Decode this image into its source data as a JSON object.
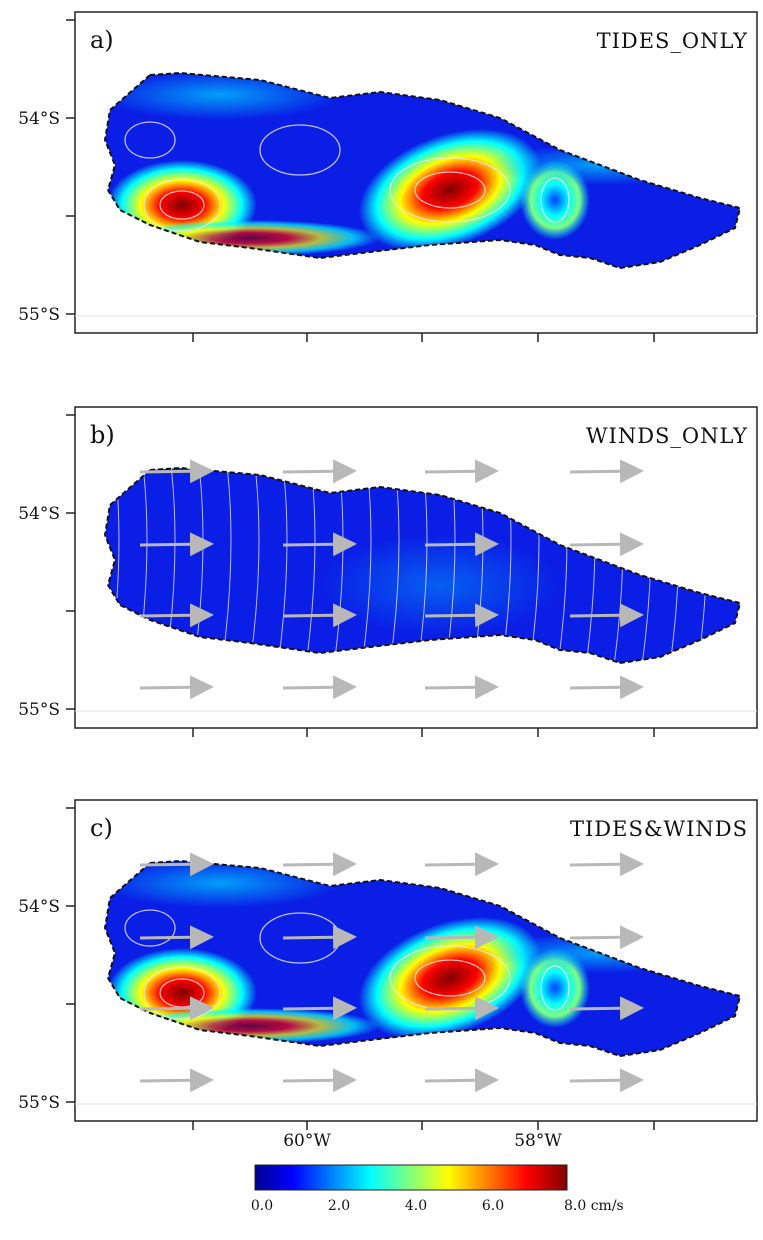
{
  "panels": [
    {
      "label": "a)",
      "title": "TIDES_ONLY",
      "y_tick_labels": [
        "54°S",
        "55°S"
      ]
    },
    {
      "label": "b)",
      "title": "WINDS_ONLY",
      "y_tick_labels": [
        "54°S",
        "55°S"
      ]
    },
    {
      "label": "c)",
      "title": "TIDES&WINDS",
      "y_tick_labels": [
        "54°S",
        "55°S"
      ]
    }
  ],
  "x_tick_labels": [
    "60°W",
    "58°W"
  ],
  "colorbar": {
    "tick_labels": [
      "0.0",
      "2.0",
      "4.0",
      "6.0",
      "8.0 cm/s"
    ]
  }
}
